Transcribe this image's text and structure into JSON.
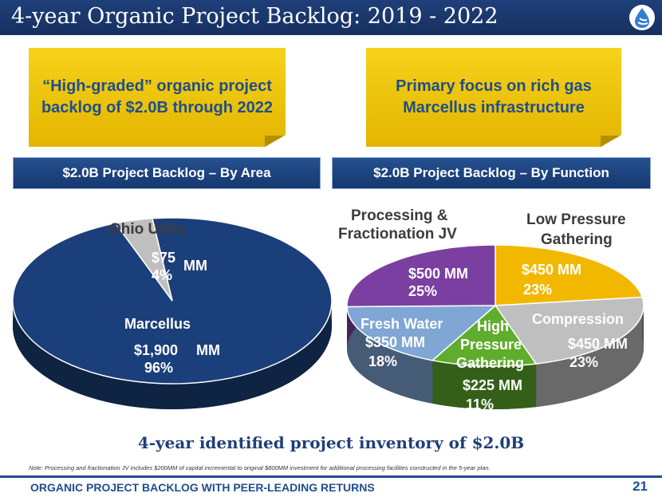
{
  "title": "4-year Organic Project Backlog: 2019 - 2022",
  "callouts": {
    "left": "“High-graded” organic project backlog of $2.0B through 2022",
    "right": "Primary focus on rich gas Marcellus infrastructure"
  },
  "section_bars": {
    "area": "$2.0B Project Backlog – By Area",
    "function": "$2.0B Project Backlog – By Function"
  },
  "area_chart": {
    "ohio_label": "Ohio Utica",
    "ohio_amount": "$75",
    "ohio_unit": "MM",
    "ohio_pct": "4%",
    "marcellus_label": "Marcellus",
    "marcellus_amount": "$1,900",
    "marcellus_unit": "MM",
    "marcellus_pct": "96%"
  },
  "function_chart": {
    "proc_label_1": "Processing &",
    "proc_label_2": "Fractionation JV",
    "proc_amount": "$500 MM",
    "proc_pct": "25%",
    "lp_label_1": "Low Pressure",
    "lp_label_2": "Gathering",
    "lp_amount": "$450  MM",
    "lp_pct": "23%",
    "comp_label": "Compression",
    "comp_amount": "$450 MM",
    "comp_pct": "23%",
    "hp_label_1": "High",
    "hp_label_2": "Pressure",
    "hp_label_3": "Gathering",
    "hp_amount": "$225 MM",
    "hp_pct": "11%",
    "fw_label": "Fresh Water",
    "fw_amount": "$350 MM",
    "fw_pct": "18%"
  },
  "chart_data": [
    {
      "type": "pie",
      "categories": [
        "Marcellus",
        "Ohio Utica"
      ],
      "values": [
        1900,
        75
      ],
      "percents": [
        96,
        4
      ],
      "colors": [
        "#1b3f7a",
        "#bfbfbf"
      ]
    },
    {
      "type": "pie",
      "categories": [
        "Low Pressure Gathering",
        "Compression",
        "High Pressure Gathering",
        "Fresh Water",
        "Processing & Fractionation JV"
      ],
      "values": [
        450,
        450,
        225,
        350,
        500
      ],
      "percents": [
        23,
        23,
        11,
        18,
        25
      ],
      "colors": [
        "#f2b800",
        "#bfbfbf",
        "#5fad2c",
        "#7fa6d4",
        "#7a3fa0"
      ]
    }
  ],
  "inventory_text": "4-year identified project inventory of $2.0B",
  "note": "Note: Processing and fractionation JV includes $200MM of capital incremental to original $800MM investment for additional processing facilities constructed in the 5-year plan.",
  "footer": "ORGANIC PROJECT BACKLOG WITH PEER-LEADING RETURNS",
  "page_number": "21",
  "logo_icon": "flame-drop-logo-icon"
}
